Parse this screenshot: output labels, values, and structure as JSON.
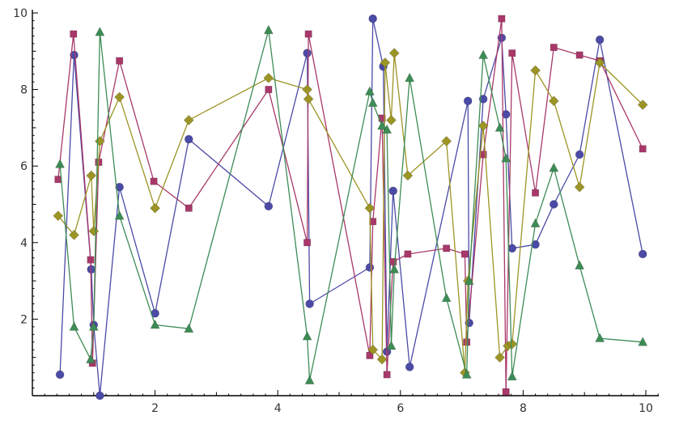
{
  "chart_data": {
    "type": "line",
    "title": "",
    "xlabel": "",
    "ylabel": "",
    "xlim": [
      0,
      10.2
    ],
    "ylim": [
      0,
      10
    ],
    "x_ticks": [
      2,
      4,
      6,
      8,
      10
    ],
    "y_ticks": [
      2,
      4,
      6,
      8,
      10
    ],
    "grid": false,
    "legend": "none",
    "series": [
      {
        "color": "#4b4aa6",
        "marker": "circle",
        "points": [
          [
            0.45,
            0.55
          ],
          [
            0.68,
            8.9
          ],
          [
            0.96,
            3.3
          ],
          [
            1.0,
            1.85
          ],
          [
            1.1,
            0.0
          ],
          [
            1.42,
            5.45
          ],
          [
            2.0,
            2.15
          ],
          [
            2.55,
            6.7
          ],
          [
            3.85,
            4.95
          ],
          [
            4.48,
            8.95
          ],
          [
            4.52,
            2.4
          ],
          [
            5.5,
            3.35
          ],
          [
            5.55,
            9.85
          ],
          [
            5.72,
            8.6
          ],
          [
            5.78,
            1.15
          ],
          [
            5.88,
            5.35
          ],
          [
            6.15,
            0.75
          ],
          [
            7.1,
            7.7
          ],
          [
            7.12,
            1.9
          ],
          [
            7.35,
            7.75
          ],
          [
            7.65,
            9.35
          ],
          [
            7.72,
            7.35
          ],
          [
            7.82,
            3.85
          ],
          [
            8.2,
            3.95
          ],
          [
            8.5,
            5.0
          ],
          [
            8.92,
            6.3
          ],
          [
            9.25,
            9.3
          ],
          [
            9.95,
            3.7
          ]
        ]
      },
      {
        "color": "#a8386a",
        "marker": "square",
        "points": [
          [
            0.42,
            5.65
          ],
          [
            0.67,
            9.45
          ],
          [
            0.95,
            3.55
          ],
          [
            0.98,
            0.85
          ],
          [
            1.08,
            6.1
          ],
          [
            1.42,
            8.75
          ],
          [
            1.98,
            5.6
          ],
          [
            2.55,
            4.9
          ],
          [
            3.85,
            8.0
          ],
          [
            4.48,
            4.0
          ],
          [
            4.5,
            9.45
          ],
          [
            5.5,
            1.05
          ],
          [
            5.55,
            4.55
          ],
          [
            5.7,
            7.25
          ],
          [
            5.78,
            0.55
          ],
          [
            5.88,
            3.5
          ],
          [
            6.12,
            3.7
          ],
          [
            6.75,
            3.85
          ],
          [
            7.05,
            3.7
          ],
          [
            7.08,
            1.4
          ],
          [
            7.35,
            6.3
          ],
          [
            7.65,
            9.85
          ],
          [
            7.72,
            0.1
          ],
          [
            7.82,
            8.95
          ],
          [
            8.2,
            5.3
          ],
          [
            8.5,
            9.1
          ],
          [
            8.92,
            8.9
          ],
          [
            9.25,
            8.75
          ],
          [
            9.95,
            6.45
          ]
        ]
      },
      {
        "color": "#9c9425",
        "marker": "diamond",
        "points": [
          [
            0.42,
            4.7
          ],
          [
            0.68,
            4.2
          ],
          [
            0.96,
            5.75
          ],
          [
            1.0,
            4.3
          ],
          [
            1.1,
            6.65
          ],
          [
            1.42,
            7.8
          ],
          [
            2.0,
            4.9
          ],
          [
            2.55,
            7.2
          ],
          [
            3.85,
            8.3
          ],
          [
            4.48,
            8.0
          ],
          [
            4.5,
            7.75
          ],
          [
            5.5,
            4.9
          ],
          [
            5.55,
            1.2
          ],
          [
            5.7,
            0.95
          ],
          [
            5.75,
            8.7
          ],
          [
            5.85,
            7.2
          ],
          [
            5.9,
            8.95
          ],
          [
            6.12,
            5.75
          ],
          [
            6.75,
            6.65
          ],
          [
            7.05,
            0.6
          ],
          [
            7.1,
            3.0
          ],
          [
            7.35,
            7.05
          ],
          [
            7.62,
            1.0
          ],
          [
            7.75,
            1.3
          ],
          [
            7.82,
            1.35
          ],
          [
            8.2,
            8.5
          ],
          [
            8.5,
            7.7
          ],
          [
            8.92,
            5.45
          ],
          [
            9.25,
            8.7
          ],
          [
            9.95,
            7.6
          ]
        ]
      },
      {
        "color": "#3d8c55",
        "marker": "triangle",
        "points": [
          [
            0.45,
            6.05
          ],
          [
            0.68,
            1.8
          ],
          [
            0.95,
            0.95
          ],
          [
            1.0,
            1.8
          ],
          [
            1.1,
            9.5
          ],
          [
            1.42,
            4.7
          ],
          [
            2.0,
            1.85
          ],
          [
            2.55,
            1.75
          ],
          [
            3.85,
            9.55
          ],
          [
            4.48,
            1.55
          ],
          [
            4.52,
            0.4
          ],
          [
            5.5,
            7.95
          ],
          [
            5.55,
            7.65
          ],
          [
            5.7,
            7.05
          ],
          [
            5.78,
            6.95
          ],
          [
            5.85,
            1.3
          ],
          [
            5.9,
            3.3
          ],
          [
            6.15,
            8.3
          ],
          [
            6.75,
            2.55
          ],
          [
            7.08,
            0.55
          ],
          [
            7.12,
            3.0
          ],
          [
            7.35,
            8.9
          ],
          [
            7.62,
            7.0
          ],
          [
            7.72,
            6.2
          ],
          [
            7.82,
            0.5
          ],
          [
            8.2,
            4.5
          ],
          [
            8.5,
            5.95
          ],
          [
            8.92,
            3.4
          ],
          [
            9.25,
            1.5
          ],
          [
            9.95,
            1.4
          ]
        ]
      }
    ]
  }
}
